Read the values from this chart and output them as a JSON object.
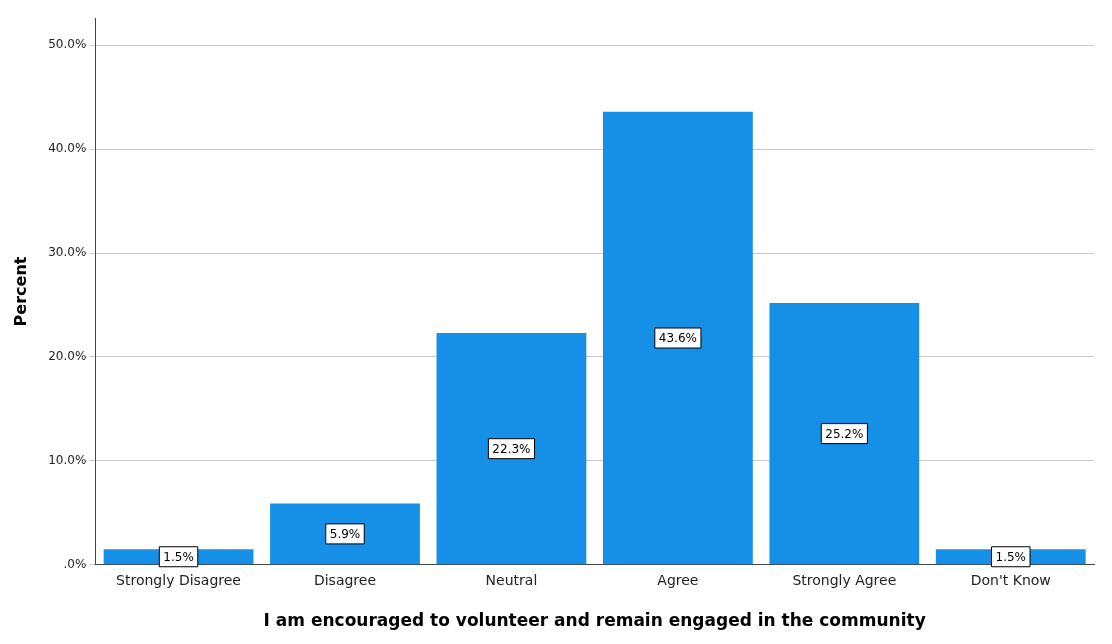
{
  "chart_data": {
    "type": "bar",
    "xlabel": "I am encouraged to volunteer and remain engaged in the community",
    "ylabel": "Percent",
    "categories": [
      "Strongly Disagree",
      "Disagree",
      "Neutral",
      "Agree",
      "Strongly Agree",
      "Don't Know"
    ],
    "values": [
      1.5,
      5.9,
      22.3,
      43.6,
      25.2,
      1.5
    ],
    "value_labels": [
      "1.5%",
      "5.9%",
      "22.3%",
      "43.6%",
      "25.2%",
      "1.5%"
    ],
    "color": "#1690e6",
    "ylim": [
      0,
      52.6
    ],
    "yticks": [
      {
        "value": 0,
        "label": ".0%"
      },
      {
        "value": 10,
        "label": "10.0%"
      },
      {
        "value": 20,
        "label": "20.0%"
      },
      {
        "value": 30,
        "label": "30.0%"
      },
      {
        "value": 40,
        "label": "40.0%"
      },
      {
        "value": 50,
        "label": "50.0%"
      }
    ],
    "grid": "y",
    "legend": false
  }
}
